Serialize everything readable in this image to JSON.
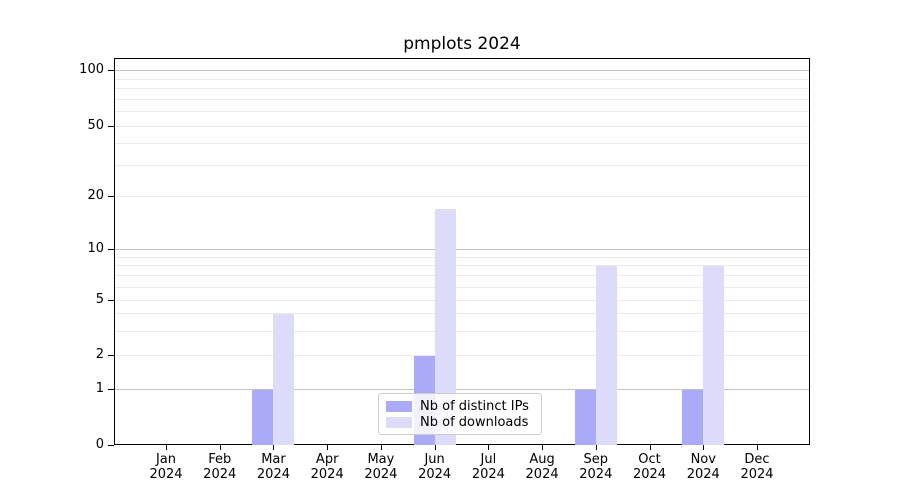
{
  "chart_data": {
    "type": "bar",
    "title": "pmplots 2024",
    "categories": [
      {
        "month": "Jan",
        "year": "2024"
      },
      {
        "month": "Feb",
        "year": "2024"
      },
      {
        "month": "Mar",
        "year": "2024"
      },
      {
        "month": "Apr",
        "year": "2024"
      },
      {
        "month": "May",
        "year": "2024"
      },
      {
        "month": "Jun",
        "year": "2024"
      },
      {
        "month": "Jul",
        "year": "2024"
      },
      {
        "month": "Aug",
        "year": "2024"
      },
      {
        "month": "Sep",
        "year": "2024"
      },
      {
        "month": "Oct",
        "year": "2024"
      },
      {
        "month": "Nov",
        "year": "2024"
      },
      {
        "month": "Dec",
        "year": "2024"
      }
    ],
    "series": [
      {
        "key": "ips",
        "name": "Nb of distinct IPs",
        "color": "#aaaaf8",
        "values": [
          0,
          0,
          1,
          0,
          0,
          2,
          0,
          0,
          1,
          0,
          1,
          0
        ]
      },
      {
        "key": "downloads",
        "name": "Nb of downloads",
        "color": "#dcdcfa",
        "values": [
          0,
          0,
          4,
          0,
          0,
          17,
          0,
          0,
          8,
          0,
          8,
          0
        ]
      }
    ],
    "y_axis": {
      "scale": "asinh",
      "ticks": [
        0,
        1,
        2,
        5,
        10,
        20,
        50,
        100
      ],
      "major_gridlines": [
        1,
        10,
        100
      ],
      "minor_gridlines": [
        2,
        3,
        4,
        5,
        6,
        7,
        8,
        9,
        20,
        30,
        40,
        50,
        60,
        70,
        80,
        90
      ],
      "ylim": [
        0,
        115
      ]
    },
    "legend": {
      "position": "lower center"
    },
    "grid": true
  },
  "colors": {
    "grid_major": "#c2c2c2",
    "grid_minor": "#ebebeb",
    "spine": "#000000",
    "text": "#000000",
    "legend_border": "#cccccc",
    "background": "#ffffff"
  }
}
